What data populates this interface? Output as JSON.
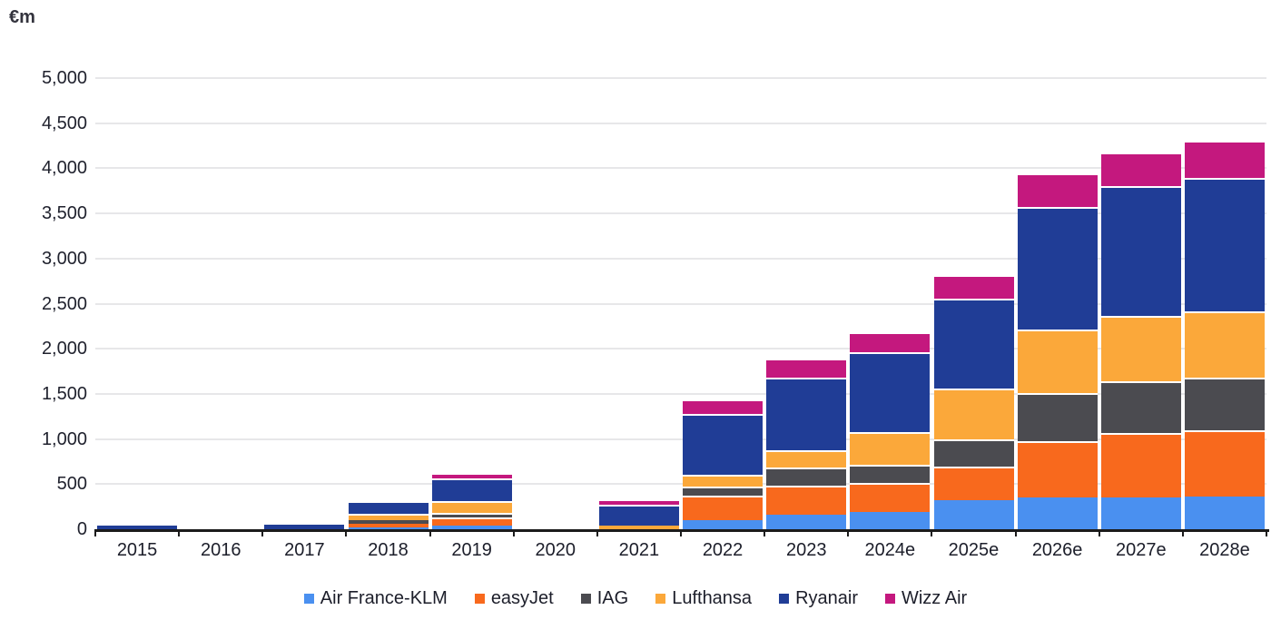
{
  "unit_label": "€m",
  "chart_data": {
    "type": "bar",
    "subtype": "stacked",
    "title": "",
    "unit": "€m",
    "ylabel": "€m",
    "xlabel": "",
    "ylim": [
      0,
      5000
    ],
    "y_step": 500,
    "y_tick_labels": [
      "0",
      "500",
      "1,000",
      "1,500",
      "2,000",
      "2,500",
      "3,000",
      "3,500",
      "4,000",
      "4,500",
      "5,000"
    ],
    "grid": true,
    "legend_position": "bottom",
    "categories": [
      "2015",
      "2016",
      "2017",
      "2018",
      "2019",
      "2020",
      "2021",
      "2022",
      "2023",
      "2024e",
      "2025e",
      "2026e",
      "2027e",
      "2028e"
    ],
    "series": [
      {
        "name": "Air France-KLM",
        "color": "#4A90F0",
        "values": [
          0,
          0,
          0,
          20,
          45,
          0,
          0,
          100,
          160,
          190,
          320,
          350,
          350,
          360
        ]
      },
      {
        "name": "easyJet",
        "color": "#F8691D",
        "values": [
          0,
          0,
          0,
          45,
          85,
          0,
          0,
          270,
          320,
          320,
          370,
          630,
          720,
          740
        ]
      },
      {
        "name": "IAG",
        "color": "#4B4B50",
        "values": [
          0,
          0,
          0,
          40,
          55,
          0,
          0,
          100,
          200,
          200,
          310,
          530,
          570,
          580
        ]
      },
      {
        "name": "Lufthansa",
        "color": "#FBA83A",
        "values": [
          0,
          0,
          0,
          70,
          125,
          0,
          40,
          130,
          200,
          370,
          560,
          700,
          720,
          730
        ]
      },
      {
        "name": "Ryanair",
        "color": "#203D96",
        "values": [
          40,
          0,
          50,
          140,
          250,
          0,
          230,
          680,
          800,
          880,
          1000,
          1360,
          1440,
          1480
        ]
      },
      {
        "name": "Wizz Air",
        "color": "#C4187E",
        "values": [
          0,
          0,
          0,
          0,
          60,
          0,
          45,
          160,
          210,
          220,
          260,
          370,
          380,
          420
        ]
      }
    ],
    "totals": [
      40,
      0,
      50,
      315,
      620,
      0,
      315,
      1440,
      1890,
      2180,
      2820,
      3940,
      4180,
      4310
    ]
  }
}
